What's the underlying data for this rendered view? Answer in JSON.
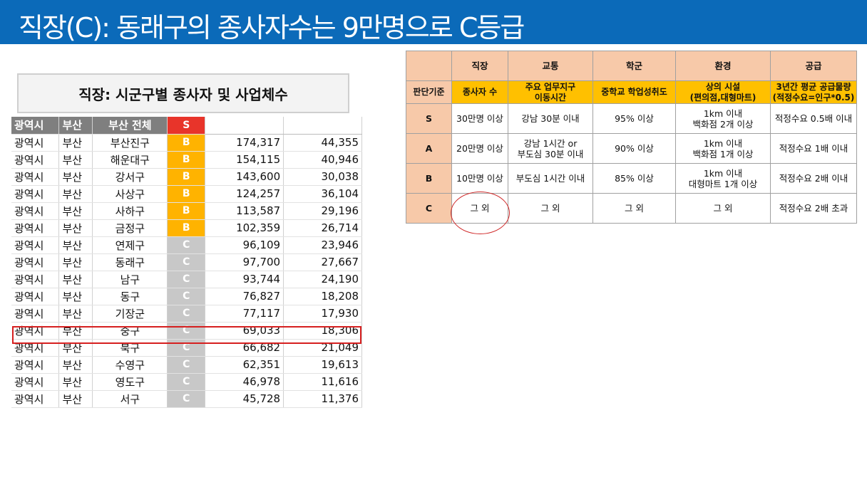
{
  "title": "직장(C): 동래구의 종사자수는 9만명으로 C등급",
  "sheet": {
    "title": "직장: 시군구별 종사자 및 사업체수",
    "header": [
      "광역시",
      "부산",
      "부산 전체",
      "S"
    ],
    "rows": [
      {
        "a": "광역시",
        "b": "부산",
        "c": "부산진구",
        "g": "B",
        "n1": "174,317",
        "n2": "44,355"
      },
      {
        "a": "광역시",
        "b": "부산",
        "c": "해운대구",
        "g": "B",
        "n1": "154,115",
        "n2": "40,946"
      },
      {
        "a": "광역시",
        "b": "부산",
        "c": "강서구",
        "g": "B",
        "n1": "143,600",
        "n2": "30,038"
      },
      {
        "a": "광역시",
        "b": "부산",
        "c": "사상구",
        "g": "B",
        "n1": "124,257",
        "n2": "36,104"
      },
      {
        "a": "광역시",
        "b": "부산",
        "c": "사하구",
        "g": "B",
        "n1": "113,587",
        "n2": "29,196"
      },
      {
        "a": "광역시",
        "b": "부산",
        "c": "금정구",
        "g": "B",
        "n1": "102,359",
        "n2": "26,714"
      },
      {
        "a": "광역시",
        "b": "부산",
        "c": "연제구",
        "g": "C",
        "n1": "96,109",
        "n2": "23,946"
      },
      {
        "a": "광역시",
        "b": "부산",
        "c": "동래구",
        "g": "C",
        "n1": "97,700",
        "n2": "27,667"
      },
      {
        "a": "광역시",
        "b": "부산",
        "c": "남구",
        "g": "C",
        "n1": "93,744",
        "n2": "24,190"
      },
      {
        "a": "광역시",
        "b": "부산",
        "c": "동구",
        "g": "C",
        "n1": "76,827",
        "n2": "18,208"
      },
      {
        "a": "광역시",
        "b": "부산",
        "c": "기장군",
        "g": "C",
        "n1": "77,117",
        "n2": "17,930"
      },
      {
        "a": "광역시",
        "b": "부산",
        "c": "중구",
        "g": "C",
        "n1": "69,033",
        "n2": "18,306"
      },
      {
        "a": "광역시",
        "b": "부산",
        "c": "북구",
        "g": "C",
        "n1": "66,682",
        "n2": "21,049"
      },
      {
        "a": "광역시",
        "b": "부산",
        "c": "수영구",
        "g": "C",
        "n1": "62,351",
        "n2": "19,613"
      },
      {
        "a": "광역시",
        "b": "부산",
        "c": "영도구",
        "g": "C",
        "n1": "46,978",
        "n2": "11,616"
      },
      {
        "a": "광역시",
        "b": "부산",
        "c": "서구",
        "g": "C",
        "n1": "45,728",
        "n2": "11,376"
      }
    ],
    "grade_colors": {
      "S": "#e8342a",
      "B": "#ffb300",
      "C": "#c8c8c8"
    }
  },
  "criteria": {
    "header": [
      "",
      "직장",
      "교통",
      "학군",
      "환경",
      "공급"
    ],
    "sub": [
      "판단기준",
      "종사자 수",
      "주요 업무지구\n이동시간",
      "중학교 학업성취도",
      "상의 시설\n(편의점,대형마트)",
      "3년간 평균 공급물량\n(적정수요=인구*0.5)"
    ],
    "rows": [
      [
        "S",
        "30만명 이상",
        "강남 30분 이내",
        "95% 이상",
        "1km 이내\n백화점 2개 이상",
        "적정수요 0.5배 이내"
      ],
      [
        "A",
        "20만명 이상",
        "강남 1시간 or\n부도심 30분 이내",
        "90% 이상",
        "1km 이내\n백화점 1개 이상",
        "적정수요 1배 이내"
      ],
      [
        "B",
        "10만명 이상",
        "부도심 1시간 이내",
        "85% 이상",
        "1km 이내\n대형마트 1개 이상",
        "적정수요 2배 이내"
      ],
      [
        "C",
        "그 외",
        "그 외",
        "그 외",
        "그 외",
        "적정수요 2배 초과"
      ]
    ]
  }
}
